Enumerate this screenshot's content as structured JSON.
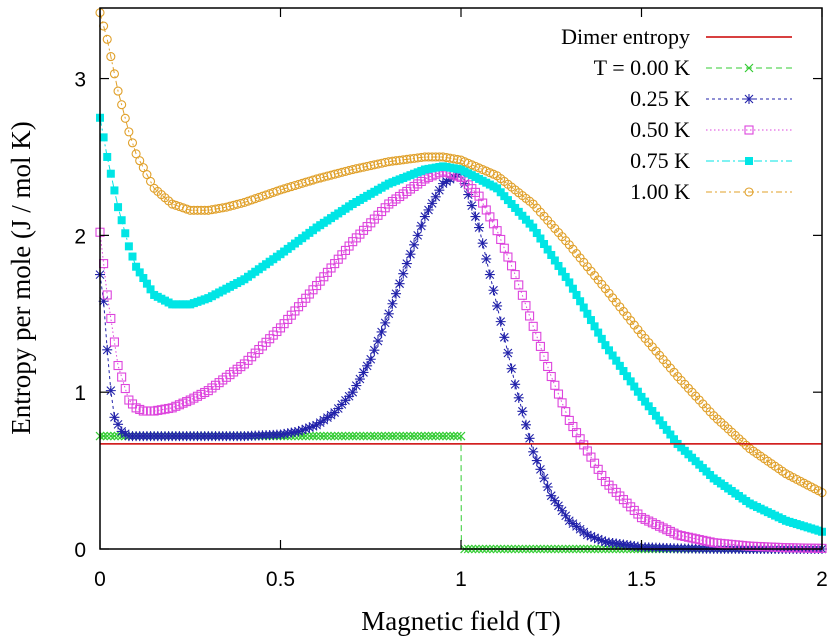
{
  "chart_data": {
    "type": "line",
    "title": "",
    "xlabel": "Magnetic field (T)",
    "ylabel": "Entropy per mole (J / mol K)",
    "xlim": [
      0,
      2
    ],
    "ylim": [
      0,
      3.45
    ],
    "xticks": [
      0,
      0.5,
      1,
      1.5,
      2
    ],
    "xtick_labels": [
      "0",
      "0.5",
      "1",
      "1.5",
      "2"
    ],
    "yticks": [
      0,
      1,
      2,
      3
    ],
    "ytick_labels": [
      "0",
      "1",
      "2",
      "3"
    ],
    "grid": false,
    "legend_position": "top-right",
    "dimer_entropy": {
      "name": "Dimer entropy",
      "value": 0.67,
      "color": "#cc0000"
    },
    "series": [
      {
        "name": "T = 0.00 K",
        "marker": "x",
        "color": "#33cc33",
        "x": [
          0,
          0.0001,
          0.99,
          1.0,
          1.001,
          2.0
        ],
        "y": [
          0.72,
          0.72,
          0.72,
          0.72,
          0.0,
          0.0
        ]
      },
      {
        "name": "0.25 K",
        "marker": "star",
        "color": "#2222aa",
        "x": [
          0,
          0.01,
          0.02,
          0.03,
          0.04,
          0.06,
          0.08,
          0.1,
          0.2,
          0.3,
          0.4,
          0.5,
          0.55,
          0.6,
          0.65,
          0.7,
          0.75,
          0.8,
          0.85,
          0.9,
          0.95,
          1.0,
          1.05,
          1.1,
          1.15,
          1.2,
          1.25,
          1.3,
          1.35,
          1.4,
          1.5,
          1.6,
          1.7,
          1.8,
          2.0
        ],
        "y": [
          1.75,
          1.58,
          1.27,
          1.01,
          0.84,
          0.75,
          0.72,
          0.72,
          0.72,
          0.72,
          0.72,
          0.73,
          0.75,
          0.79,
          0.87,
          1.0,
          1.21,
          1.5,
          1.82,
          2.12,
          2.33,
          2.4,
          2.05,
          1.55,
          1.05,
          0.62,
          0.34,
          0.18,
          0.09,
          0.045,
          0.012,
          0.004,
          0.001,
          0.0,
          0.0
        ]
      },
      {
        "name": "0.50 K",
        "marker": "square-open",
        "color": "#dd44dd",
        "x": [
          0,
          0.02,
          0.05,
          0.08,
          0.1,
          0.12,
          0.15,
          0.2,
          0.25,
          0.3,
          0.4,
          0.5,
          0.6,
          0.7,
          0.8,
          0.9,
          0.95,
          1.0,
          1.05,
          1.1,
          1.15,
          1.2,
          1.25,
          1.3,
          1.4,
          1.5,
          1.6,
          1.7,
          1.8,
          1.9,
          2.0
        ],
        "y": [
          2.02,
          1.62,
          1.17,
          0.95,
          0.9,
          0.88,
          0.88,
          0.9,
          0.95,
          1.01,
          1.18,
          1.41,
          1.68,
          1.96,
          2.2,
          2.36,
          2.41,
          2.37,
          2.25,
          2.03,
          1.75,
          1.42,
          1.1,
          0.82,
          0.43,
          0.2,
          0.09,
          0.04,
          0.018,
          0.008,
          0.004
        ]
      },
      {
        "name": "0.75 K",
        "marker": "square-filled",
        "color": "#00e5e5",
        "x": [
          0,
          0.02,
          0.05,
          0.08,
          0.1,
          0.15,
          0.2,
          0.25,
          0.3,
          0.4,
          0.5,
          0.6,
          0.7,
          0.8,
          0.9,
          0.95,
          1.0,
          1.1,
          1.2,
          1.3,
          1.4,
          1.5,
          1.6,
          1.7,
          1.8,
          1.9,
          2.0
        ],
        "y": [
          2.75,
          2.5,
          2.18,
          1.93,
          1.8,
          1.62,
          1.56,
          1.56,
          1.6,
          1.72,
          1.88,
          2.05,
          2.2,
          2.33,
          2.42,
          2.44,
          2.42,
          2.3,
          2.05,
          1.7,
          1.3,
          0.97,
          0.67,
          0.45,
          0.29,
          0.18,
          0.11
        ]
      },
      {
        "name": "1.00 K",
        "marker": "circle-open",
        "color": "#e0a02a",
        "x": [
          0,
          0.02,
          0.05,
          0.08,
          0.1,
          0.15,
          0.2,
          0.25,
          0.3,
          0.35,
          0.4,
          0.5,
          0.6,
          0.7,
          0.8,
          0.9,
          0.95,
          1.0,
          1.1,
          1.2,
          1.3,
          1.4,
          1.5,
          1.6,
          1.7,
          1.8,
          1.9,
          2.0
        ],
        "y": [
          3.42,
          3.25,
          2.92,
          2.66,
          2.52,
          2.3,
          2.2,
          2.16,
          2.16,
          2.18,
          2.21,
          2.29,
          2.36,
          2.42,
          2.47,
          2.5,
          2.5,
          2.48,
          2.38,
          2.2,
          1.94,
          1.66,
          1.37,
          1.1,
          0.85,
          0.64,
          0.48,
          0.36
        ]
      }
    ]
  }
}
